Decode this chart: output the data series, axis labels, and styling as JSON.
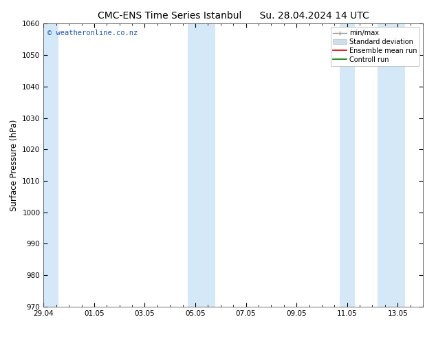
{
  "title": "CMC-ENS Time Series Istanbul      Su. 28.04.2024 14 UTC",
  "ylabel": "Surface Pressure (hPa)",
  "ylim": [
    970,
    1060
  ],
  "yticks": [
    970,
    980,
    990,
    1000,
    1010,
    1020,
    1030,
    1040,
    1050,
    1060
  ],
  "xlim": [
    0,
    15
  ],
  "xtick_labels": [
    "29.04",
    "01.05",
    "03.05",
    "05.05",
    "07.05",
    "09.05",
    "11.05",
    "13.05"
  ],
  "xtick_positions": [
    0,
    2,
    4,
    6,
    8,
    10,
    12,
    14
  ],
  "bg_color": "#ffffff",
  "plot_bg_color": "#ffffff",
  "shaded_regions": [
    {
      "x_start": -0.1,
      "x_end": 0.6
    },
    {
      "x_start": 5.7,
      "x_end": 6.8
    },
    {
      "x_start": 11.7,
      "x_end": 12.3
    },
    {
      "x_start": 13.2,
      "x_end": 14.3
    }
  ],
  "shade_color": "#d4e8f7",
  "watermark": "© weatheronline.co.nz",
  "watermark_color": "#1a55bb",
  "title_fontsize": 10,
  "tick_fontsize": 7.5,
  "label_fontsize": 8.5,
  "legend_fontsize": 7
}
